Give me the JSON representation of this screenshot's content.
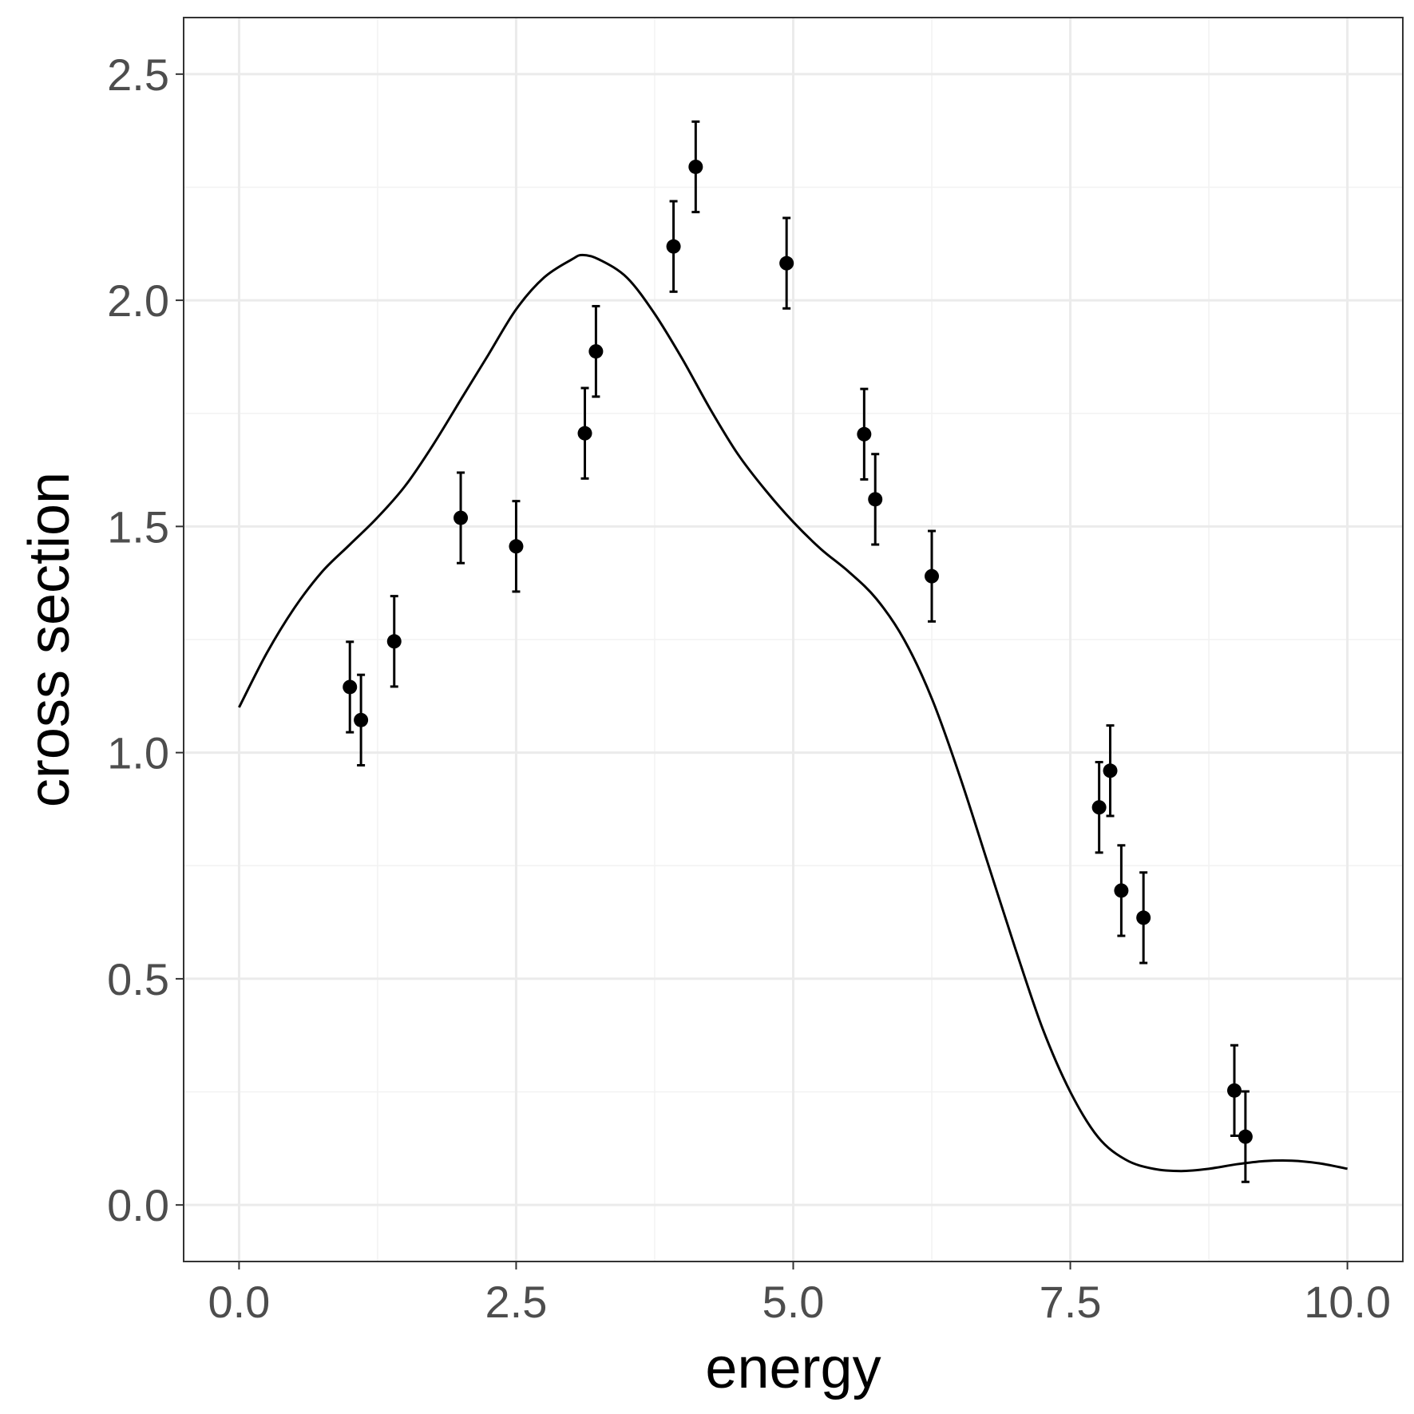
{
  "chart_data": {
    "type": "scatter",
    "xlabel": "energy",
    "ylabel": "cross section",
    "xlim": [
      -0.5,
      10.5
    ],
    "ylim": [
      -0.125,
      2.625
    ],
    "x_ticks": [
      0.0,
      2.5,
      5.0,
      7.5,
      10.0
    ],
    "x_tick_labels": [
      "0.0",
      "2.5",
      "5.0",
      "7.5",
      "10.0"
    ],
    "y_ticks": [
      0.0,
      0.5,
      1.0,
      1.5,
      2.0,
      2.5
    ],
    "y_tick_labels": [
      "0.0",
      "0.5",
      "1.0",
      "1.5",
      "2.0",
      "2.5"
    ],
    "grid": true,
    "series": [
      {
        "kind": "points_with_errorbars",
        "x": [
          1.0,
          1.1,
          1.4,
          2.0,
          2.5,
          3.12,
          3.22,
          3.92,
          4.12,
          4.94,
          5.64,
          5.74,
          6.25,
          7.76,
          7.86,
          7.96,
          8.16,
          8.98,
          9.08
        ],
        "y": [
          1.145,
          1.072,
          1.246,
          1.519,
          1.456,
          1.706,
          1.887,
          2.119,
          2.295,
          2.082,
          1.704,
          1.56,
          1.39,
          0.879,
          0.96,
          0.695,
          0.635,
          0.253,
          0.151
        ],
        "error": 0.1,
        "color": "#000000"
      },
      {
        "kind": "curve",
        "x": [
          0.0,
          0.25,
          0.5,
          0.75,
          1.0,
          1.25,
          1.5,
          1.75,
          2.0,
          2.25,
          2.5,
          2.75,
          3.0,
          3.1,
          3.25,
          3.5,
          3.75,
          4.0,
          4.25,
          4.5,
          4.75,
          5.0,
          5.25,
          5.5,
          5.75,
          6.0,
          6.25,
          6.5,
          6.75,
          7.0,
          7.25,
          7.5,
          7.75,
          8.0,
          8.25,
          8.5,
          8.75,
          9.0,
          9.25,
          9.5,
          9.75,
          10.0
        ],
        "y": [
          1.1,
          1.22,
          1.32,
          1.4,
          1.46,
          1.52,
          1.59,
          1.68,
          1.78,
          1.88,
          1.98,
          2.05,
          2.09,
          2.1,
          2.09,
          2.05,
          1.97,
          1.87,
          1.76,
          1.66,
          1.58,
          1.51,
          1.45,
          1.4,
          1.34,
          1.25,
          1.12,
          0.95,
          0.76,
          0.57,
          0.39,
          0.25,
          0.15,
          0.1,
          0.08,
          0.075,
          0.08,
          0.09,
          0.097,
          0.098,
          0.092,
          0.08
        ],
        "color": "#000000"
      }
    ]
  }
}
